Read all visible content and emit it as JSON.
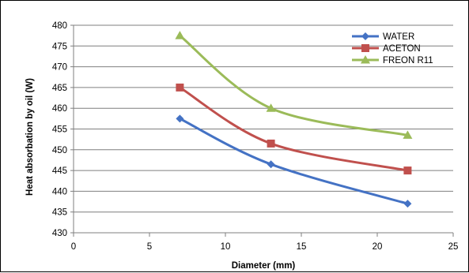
{
  "chart_data": {
    "type": "line",
    "xlabel": "Diameter (mm)",
    "ylabel": "Heat absorbation by oil (W)",
    "xlim": [
      0,
      25
    ],
    "ylim": [
      430,
      480
    ],
    "x_ticks": [
      "0",
      "5",
      "10",
      "15",
      "20",
      "25"
    ],
    "y_ticks": [
      "430",
      "435",
      "440",
      "445",
      "450",
      "455",
      "460",
      "465",
      "470",
      "475",
      "480"
    ],
    "x": [
      7,
      13,
      22
    ],
    "grid": "horizontal",
    "legend_position": "top-right",
    "series": [
      {
        "name": "WATER",
        "values": [
          457.5,
          446.5,
          437
        ],
        "color": "#4472c4",
        "marker": "diamond"
      },
      {
        "name": "ACETON",
        "values": [
          465,
          451.5,
          445
        ],
        "color": "#c0504d",
        "marker": "square"
      },
      {
        "name": "FREON R11",
        "values": [
          477.5,
          460,
          453.5
        ],
        "color": "#9bbb59",
        "marker": "triangle"
      }
    ]
  }
}
